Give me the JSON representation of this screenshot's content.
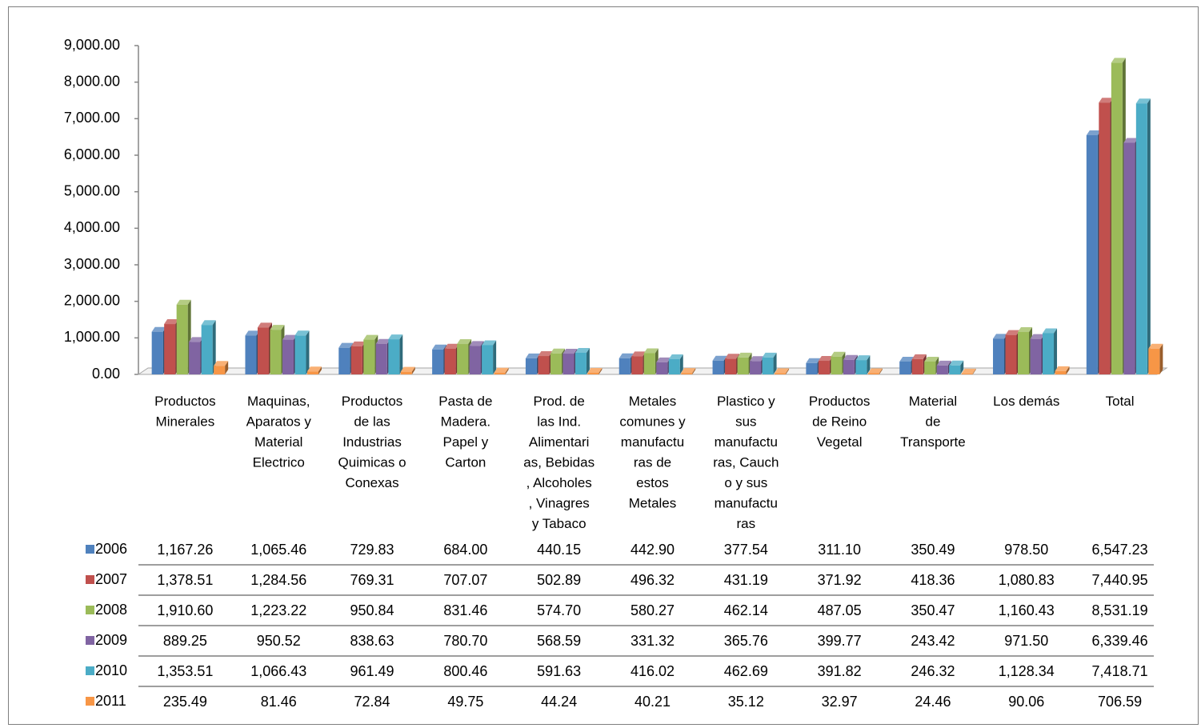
{
  "chart_data": {
    "type": "bar",
    "title": "",
    "xlabel": "",
    "ylabel": "",
    "ylim": [
      0,
      9000
    ],
    "yticks": [
      "0.00",
      "1,000.00",
      "2,000.00",
      "3,000.00",
      "4,000.00",
      "5,000.00",
      "6,000.00",
      "7,000.00",
      "8,000.00",
      "9,000.00"
    ],
    "grid": false,
    "legend": "data-table-left",
    "categories": [
      [
        "Productos",
        "Minerales"
      ],
      [
        "Maquinas,",
        "Aparatos y",
        "Material",
        "Electrico"
      ],
      [
        "Productos",
        "de las",
        "Industrias",
        "Quimicas o",
        "Conexas"
      ],
      [
        "Pasta de",
        "Madera.",
        "Papel y",
        "Carton"
      ],
      [
        "Prod. de",
        "las Ind.",
        "Alimentari",
        "as, Bebidas",
        ", Alcoholes",
        ", Vinagres",
        "y Tabaco"
      ],
      [
        "Metales",
        "comunes y",
        "manufactu",
        "ras de",
        "estos",
        "Metales"
      ],
      [
        "Plastico y",
        "sus",
        "manufactu",
        "ras, Cauch",
        "o y sus",
        "manufactu",
        "ras"
      ],
      [
        "Productos",
        "de Reino",
        "Vegetal"
      ],
      [
        "Material",
        "de",
        "Transporte"
      ],
      [
        "Los demás"
      ],
      [
        "Total"
      ]
    ],
    "series": [
      {
        "name": "2006",
        "color": "#4f81bd",
        "values": [
          1167.26,
          1065.46,
          729.83,
          684.0,
          440.15,
          442.9,
          377.54,
          311.1,
          350.49,
          978.5,
          6547.23
        ],
        "labels": [
          "1,167.26",
          "1,065.46",
          "729.83",
          "684.00",
          "440.15",
          "442.90",
          "377.54",
          "311.10",
          "350.49",
          "978.50",
          "6,547.23"
        ]
      },
      {
        "name": "2007",
        "color": "#c0504d",
        "values": [
          1378.51,
          1284.56,
          769.31,
          707.07,
          502.89,
          496.32,
          431.19,
          371.92,
          418.36,
          1080.83,
          7440.95
        ],
        "labels": [
          "1,378.51",
          "1,284.56",
          "769.31",
          "707.07",
          "502.89",
          "496.32",
          "431.19",
          "371.92",
          "418.36",
          "1,080.83",
          "7,440.95"
        ]
      },
      {
        "name": "2008",
        "color": "#9bbb59",
        "values": [
          1910.6,
          1223.22,
          950.84,
          831.46,
          574.7,
          580.27,
          462.14,
          487.05,
          350.47,
          1160.43,
          8531.19
        ],
        "labels": [
          "1,910.60",
          "1,223.22",
          "950.84",
          "831.46",
          "574.70",
          "580.27",
          "462.14",
          "487.05",
          "350.47",
          "1,160.43",
          "8,531.19"
        ]
      },
      {
        "name": "2009",
        "color": "#8064a2",
        "values": [
          889.25,
          950.52,
          838.63,
          780.7,
          568.59,
          331.32,
          365.76,
          399.77,
          243.42,
          971.5,
          6339.46
        ],
        "labels": [
          "889.25",
          "950.52",
          "838.63",
          "780.70",
          "568.59",
          "331.32",
          "365.76",
          "399.77",
          "243.42",
          "971.50",
          "6,339.46"
        ]
      },
      {
        "name": "2010",
        "color": "#4bacc6",
        "values": [
          1353.51,
          1066.43,
          961.49,
          800.46,
          591.63,
          416.02,
          462.69,
          391.82,
          246.32,
          1128.34,
          7418.71
        ],
        "labels": [
          "1,353.51",
          "1,066.43",
          "961.49",
          "800.46",
          "591.63",
          "416.02",
          "462.69",
          "391.82",
          "246.32",
          "1,128.34",
          "7,418.71"
        ]
      },
      {
        "name": "2011",
        "color": "#f79646",
        "values": [
          235.49,
          81.46,
          72.84,
          49.75,
          44.24,
          40.21,
          35.12,
          32.97,
          24.46,
          90.06,
          706.59
        ],
        "labels": [
          "235.49",
          "81.46",
          "72.84",
          "49.75",
          "44.24",
          "40.21",
          "35.12",
          "32.97",
          "24.46",
          "90.06",
          "706.59"
        ]
      }
    ]
  }
}
